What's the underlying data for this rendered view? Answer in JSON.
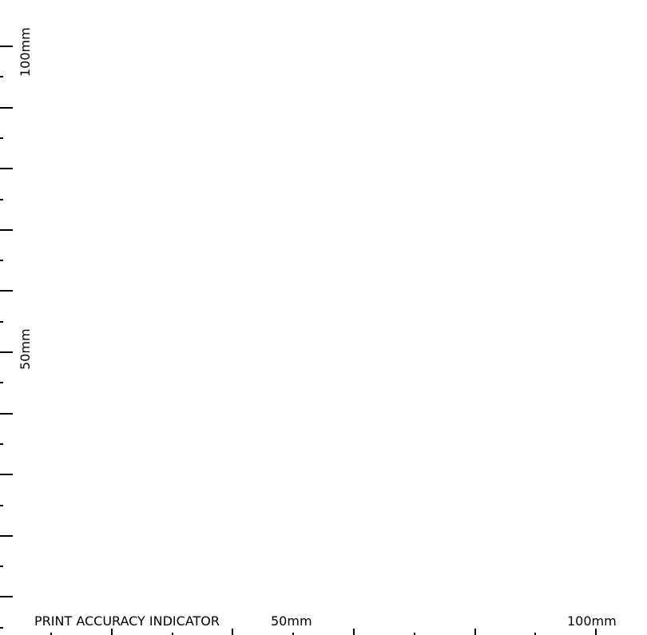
{
  "indicator": {
    "title": "PRINT ACCURACY INDICATOR",
    "units": "mm"
  },
  "vertical_ruler": {
    "label_100": "100mm",
    "label_50": "50mm"
  },
  "horizontal_ruler": {
    "label_50": "50mm",
    "label_100": "100mm"
  },
  "colors": {
    "background": "#ffffff",
    "ink": "#000000"
  }
}
